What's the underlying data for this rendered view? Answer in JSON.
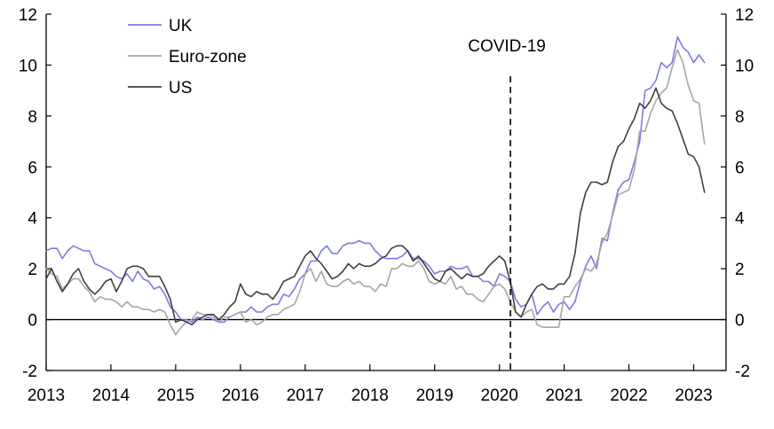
{
  "chart_data": {
    "type": "line",
    "title": "",
    "xlabel": "",
    "ylabel": "",
    "ylim": [
      -2,
      12
    ],
    "xlim": [
      2013,
      2023.5
    ],
    "yticks": [
      -2,
      0,
      2,
      4,
      6,
      8,
      10,
      12
    ],
    "xticks": [
      "2013",
      "2014",
      "2015",
      "2016",
      "2017",
      "2018",
      "2019",
      "2020",
      "2021",
      "2022",
      "2023"
    ],
    "grid": false,
    "legend_position": "top-left",
    "zero_line": true,
    "annotation": {
      "label": "COVID-19",
      "x": 2020.17
    },
    "colors": {
      "UK": "#7b7be6",
      "Euro-zone": "#a6a6a6",
      "US": "#404040"
    },
    "series": [
      {
        "name": "UK",
        "x_start": 2013.0,
        "step": "monthly",
        "values": [
          2.7,
          2.8,
          2.8,
          2.4,
          2.7,
          2.9,
          2.8,
          2.7,
          2.7,
          2.2,
          2.1,
          2.0,
          1.9,
          1.7,
          1.6,
          1.8,
          1.5,
          1.9,
          1.6,
          1.5,
          1.2,
          1.3,
          1.0,
          0.5,
          0.3,
          0.0,
          0.0,
          -0.1,
          0.1,
          0.0,
          0.1,
          0.0,
          -0.1,
          -0.1,
          0.1,
          0.2,
          0.3,
          0.3,
          0.5,
          0.3,
          0.3,
          0.5,
          0.6,
          0.6,
          1.0,
          0.9,
          1.2,
          1.6,
          1.8,
          2.3,
          2.3,
          2.7,
          2.9,
          2.6,
          2.6,
          2.9,
          3.0,
          3.0,
          3.1,
          3.0,
          3.0,
          2.7,
          2.5,
          2.4,
          2.4,
          2.4,
          2.5,
          2.7,
          2.4,
          2.4,
          2.3,
          2.1,
          1.8,
          1.9,
          1.9,
          2.1,
          2.0,
          2.0,
          2.1,
          1.7,
          1.7,
          1.5,
          1.5,
          1.3,
          1.8,
          1.7,
          1.5,
          0.8,
          0.5,
          0.6,
          1.0,
          0.2,
          0.5,
          0.7,
          0.3,
          0.6,
          0.7,
          0.4,
          0.7,
          1.5,
          2.1,
          2.5,
          2.0,
          3.2,
          3.1,
          4.2,
          5.1,
          5.4,
          5.5,
          6.2,
          7.0,
          9.0,
          9.1,
          9.4,
          10.1,
          9.9,
          10.1,
          11.1,
          10.7,
          10.5,
          10.1,
          10.4,
          10.1
        ]
      },
      {
        "name": "Euro-zone",
        "x_start": 2013.0,
        "step": "monthly",
        "values": [
          2.0,
          1.8,
          1.7,
          1.2,
          1.4,
          1.6,
          1.6,
          1.3,
          1.1,
          0.7,
          0.9,
          0.8,
          0.8,
          0.7,
          0.5,
          0.7,
          0.5,
          0.5,
          0.4,
          0.4,
          0.3,
          0.4,
          0.3,
          -0.2,
          -0.6,
          -0.3,
          -0.1,
          0.0,
          0.3,
          0.2,
          0.2,
          0.1,
          -0.1,
          0.1,
          0.1,
          0.2,
          0.3,
          -0.1,
          0.0,
          -0.2,
          -0.1,
          0.1,
          0.2,
          0.2,
          0.4,
          0.5,
          0.6,
          1.1,
          1.8,
          2.0,
          1.5,
          1.9,
          1.4,
          1.3,
          1.3,
          1.5,
          1.6,
          1.4,
          1.5,
          1.3,
          1.3,
          1.1,
          1.4,
          1.3,
          2.0,
          2.0,
          2.2,
          2.1,
          2.1,
          2.3,
          2.0,
          1.5,
          1.4,
          1.5,
          1.4,
          1.7,
          1.2,
          1.3,
          1.0,
          1.0,
          0.8,
          0.7,
          1.0,
          1.3,
          1.4,
          1.2,
          0.7,
          0.3,
          0.1,
          0.3,
          0.4,
          -0.2,
          -0.3,
          -0.3,
          -0.3,
          -0.3,
          0.9,
          0.9,
          1.3,
          1.6,
          2.0,
          1.9,
          2.2,
          3.0,
          3.4,
          4.1,
          4.9,
          5.0,
          5.1,
          5.9,
          7.4,
          7.4,
          8.1,
          8.6,
          8.9,
          9.1,
          9.9,
          10.6,
          10.1,
          9.2,
          8.6,
          8.5,
          6.9
        ]
      },
      {
        "name": "US",
        "x_start": 2013.0,
        "step": "monthly",
        "values": [
          1.6,
          2.0,
          1.5,
          1.1,
          1.4,
          1.8,
          2.0,
          1.5,
          1.2,
          1.0,
          1.2,
          1.5,
          1.6,
          1.1,
          1.5,
          2.0,
          2.1,
          2.1,
          2.0,
          1.7,
          1.7,
          1.7,
          1.3,
          0.8,
          -0.1,
          0.0,
          -0.1,
          -0.2,
          0.0,
          0.1,
          0.2,
          0.2,
          0.0,
          0.2,
          0.5,
          0.7,
          1.4,
          1.0,
          0.9,
          1.1,
          1.0,
          1.0,
          0.8,
          1.1,
          1.5,
          1.6,
          1.7,
          2.1,
          2.5,
          2.7,
          2.4,
          2.2,
          1.9,
          1.6,
          1.7,
          1.9,
          2.2,
          2.0,
          2.2,
          2.1,
          2.1,
          2.2,
          2.4,
          2.5,
          2.8,
          2.9,
          2.9,
          2.7,
          2.3,
          2.5,
          2.2,
          1.9,
          1.6,
          1.5,
          1.9,
          2.0,
          1.8,
          1.6,
          1.8,
          1.7,
          1.7,
          1.8,
          2.1,
          2.3,
          2.5,
          2.3,
          1.5,
          0.3,
          0.1,
          0.6,
          1.0,
          1.3,
          1.4,
          1.2,
          1.2,
          1.4,
          1.4,
          1.7,
          2.6,
          4.2,
          5.0,
          5.4,
          5.4,
          5.3,
          5.4,
          6.2,
          6.8,
          7.0,
          7.5,
          7.9,
          8.5,
          8.3,
          8.6,
          9.1,
          8.5,
          8.3,
          8.2,
          7.7,
          7.1,
          6.5,
          6.4,
          6.0,
          5.0
        ]
      }
    ]
  }
}
